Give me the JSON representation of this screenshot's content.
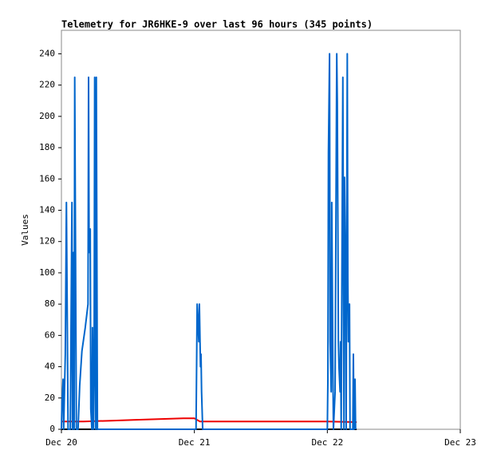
{
  "chart_data": {
    "type": "line",
    "title": "Telemetry for JR6HKE-9 over last 96 hours (345 points)",
    "y_label": "Values",
    "xlim": [
      0,
      72
    ],
    "ylim": [
      0,
      255
    ],
    "xticks": [
      {
        "value": 0,
        "label": "Dec 20"
      },
      {
        "value": 24,
        "label": "Dec 21"
      },
      {
        "value": 48,
        "label": "Dec 22"
      },
      {
        "value": 72,
        "label": "Dec 23"
      }
    ],
    "yticks": [
      0,
      20,
      40,
      60,
      80,
      100,
      120,
      140,
      160,
      180,
      200,
      220,
      240
    ],
    "series": [
      {
        "color": "#000000",
        "x": [
          0,
          53.3
        ],
        "values": [
          0,
          0
        ]
      },
      {
        "color": "#ee0000",
        "x": [
          0,
          4,
          9,
          13,
          22,
          24,
          25,
          48,
          53.3
        ],
        "values": [
          5,
          5,
          5.5,
          6,
          7,
          7,
          5,
          5,
          4.6
        ]
      },
      {
        "color": "#0066cc",
        "x": [
          0,
          0.1,
          0.3,
          0.4,
          0.6,
          0.7,
          0.9,
          1.0,
          1.2,
          1.6,
          1.9,
          2.0,
          2.2,
          2.3,
          2.4,
          2.6,
          2.7,
          3.0,
          3.3,
          3.7,
          4.3,
          4.8,
          4.9,
          5.0,
          5.2,
          5.3,
          5.5,
          5.6,
          5.8,
          5.9,
          6.0,
          6.2,
          6.3,
          6.5,
          24.3,
          24.5,
          24.6,
          24.8,
          24.9,
          25.1,
          25.2,
          25.3,
          25.5,
          25.6,
          48.0,
          48.1,
          48.2,
          48.4,
          48.5,
          48.7,
          48.8,
          49.0,
          49.1,
          49.4,
          49.5,
          49.7,
          49.8,
          50.0,
          50.1,
          50.3,
          50.4,
          50.5,
          50.8,
          51.0,
          51.1,
          51.3,
          51.4,
          51.6,
          51.7,
          51.8,
          52.0,
          52.1,
          52.6,
          52.7,
          52.8,
          53.0,
          53.1
        ],
        "values": [
          0,
          17,
          32,
          0,
          32,
          48,
          145,
          97,
          0,
          0,
          145,
          0,
          113,
          0,
          225,
          73,
          0,
          0,
          28,
          50,
          65,
          80,
          225,
          113,
          128,
          13,
          0,
          65,
          0,
          32,
          225,
          0,
          225,
          0,
          0,
          80,
          72,
          56,
          80,
          40,
          48,
          24,
          0,
          0,
          0,
          32,
          177,
          240,
          56,
          24,
          145,
          40,
          0,
          24,
          97,
          240,
          209,
          56,
          40,
          24,
          56,
          0,
          225,
          0,
          161,
          97,
          0,
          240,
          97,
          56,
          80,
          0,
          0,
          48,
          0,
          32,
          0
        ]
      }
    ]
  }
}
